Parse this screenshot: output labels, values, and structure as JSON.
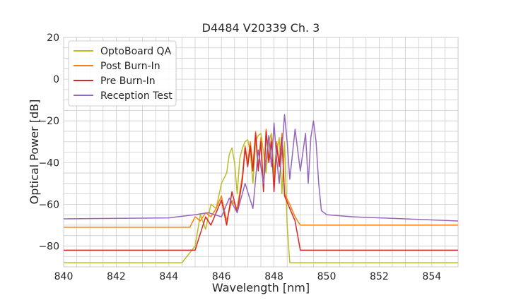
{
  "chart_data": {
    "type": "line",
    "title": "D4484 V20339 Ch. 3",
    "xlabel": "Wavelength [nm]",
    "ylabel": "Optical Power [dB]",
    "xlim": [
      840,
      855
    ],
    "ylim": [
      -90,
      20
    ],
    "xticks": [
      840,
      842,
      844,
      846,
      848,
      850,
      852,
      854
    ],
    "yticks": [
      20,
      0,
      -20,
      -40,
      -60,
      -80
    ],
    "grid": true,
    "legend_position": "top-left",
    "series": [
      {
        "name": "OptoBoard QA",
        "color": "#bcbd22",
        "x": [
          840.0,
          844.5,
          845.0,
          845.2,
          845.4,
          845.6,
          845.8,
          846.0,
          846.2,
          846.3,
          846.4,
          846.5,
          846.6,
          846.7,
          846.8,
          846.9,
          847.0,
          847.1,
          847.2,
          847.3,
          847.4,
          847.5,
          847.6,
          847.7,
          847.8,
          847.9,
          848.0,
          848.1,
          848.2,
          848.3,
          848.4,
          848.5,
          848.6,
          848.7,
          849.0,
          855.0
        ],
        "y": [
          -88,
          -88,
          -80,
          -65,
          -72,
          -60,
          -62,
          -50,
          -45,
          -36,
          -33,
          -40,
          -55,
          -38,
          -33,
          -30,
          -29,
          -35,
          -50,
          -30,
          -27,
          -26,
          -35,
          -45,
          -30,
          -26,
          -45,
          -35,
          -28,
          -55,
          -30,
          -70,
          -88,
          -88,
          -88,
          -88
        ]
      },
      {
        "name": "Post Burn-In",
        "color": "#ff7f0e",
        "x": [
          840.0,
          844.8,
          845.0,
          845.2,
          845.4,
          845.6,
          845.8,
          846.0,
          846.2,
          846.4,
          846.6,
          846.8,
          846.9,
          847.0,
          847.1,
          847.2,
          847.3,
          847.4,
          847.5,
          847.6,
          847.7,
          847.8,
          847.9,
          848.0,
          848.1,
          848.2,
          848.3,
          848.4,
          848.6,
          848.8,
          849.0,
          855.0
        ],
        "y": [
          -71,
          -71,
          -66,
          -68,
          -64,
          -66,
          -62,
          -56,
          -68,
          -58,
          -62,
          -46,
          -32,
          -40,
          -30,
          -42,
          -25,
          -42,
          -28,
          -52,
          -24,
          -38,
          -28,
          -52,
          -30,
          -40,
          -26,
          -55,
          -60,
          -66,
          -70,
          -70
        ]
      },
      {
        "name": "Pre Burn-In",
        "color": "#d62728",
        "x": [
          840.0,
          845.0,
          845.2,
          845.4,
          845.6,
          845.8,
          846.0,
          846.2,
          846.4,
          846.6,
          846.8,
          846.9,
          847.0,
          847.1,
          847.2,
          847.3,
          847.4,
          847.5,
          847.6,
          847.7,
          847.8,
          847.9,
          848.0,
          848.1,
          848.2,
          848.3,
          848.4,
          848.6,
          848.8,
          849.0,
          855.0
        ],
        "y": [
          -82,
          -82,
          -74,
          -66,
          -70,
          -64,
          -58,
          -70,
          -54,
          -64,
          -48,
          -33,
          -42,
          -32,
          -44,
          -26,
          -44,
          -30,
          -54,
          -25,
          -40,
          -30,
          -54,
          -32,
          -42,
          -28,
          -56,
          -62,
          -68,
          -82,
          -82
        ]
      },
      {
        "name": "Reception Test",
        "color": "#9467bd",
        "x": [
          840.0,
          844.0,
          845.0,
          845.5,
          846.0,
          846.3,
          846.6,
          846.9,
          847.2,
          847.4,
          847.6,
          847.8,
          847.9,
          848.0,
          848.1,
          848.2,
          848.4,
          848.5,
          848.6,
          848.8,
          849.0,
          849.2,
          849.3,
          849.4,
          849.5,
          849.6,
          849.7,
          849.8,
          850.0,
          851.0,
          853.0,
          855.0
        ],
        "y": [
          -67,
          -66.5,
          -65,
          -64,
          -66,
          -57,
          -64,
          -50,
          -62,
          -34,
          -50,
          -27,
          -42,
          -21,
          -38,
          -50,
          -17,
          -30,
          -48,
          -24,
          -44,
          -26,
          -50,
          -28,
          -20,
          -30,
          -50,
          -63,
          -65,
          -66,
          -67,
          -68
        ]
      }
    ]
  }
}
